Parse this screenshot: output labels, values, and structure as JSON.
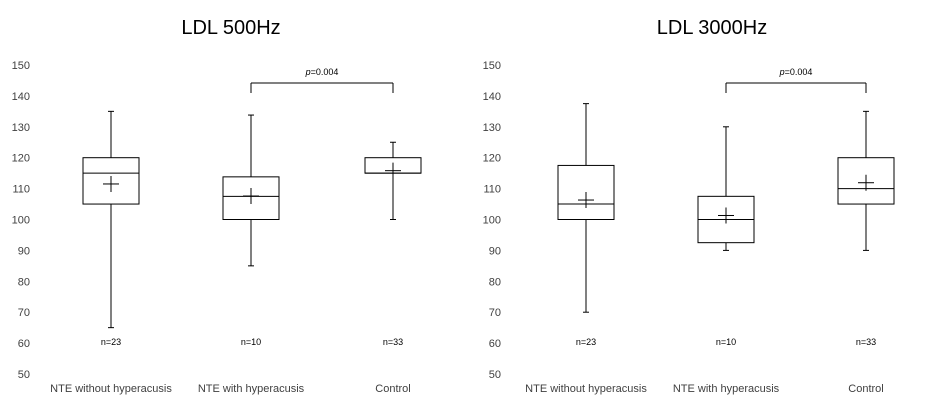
{
  "chart_data": [
    {
      "type": "boxplot",
      "title": "LDL 500Hz",
      "ylim": [
        50,
        150
      ],
      "yticks": [
        "50",
        "60",
        "70",
        "80",
        "90",
        "100",
        "110",
        "120",
        "130",
        "140",
        "150"
      ],
      "grid": false,
      "categories": [
        "NTE without hyperacusis",
        "NTE with hyperacusis",
        "Control"
      ],
      "boxes": [
        {
          "min": 65,
          "q1": 105,
          "median": 115,
          "q3": 120,
          "max": 135,
          "mean": 111.5
        },
        {
          "min": 85,
          "q1": 100,
          "median": 107.5,
          "q3": 113.8,
          "max": 133.8,
          "mean": 107.6
        },
        {
          "min": 100,
          "q1": 115,
          "median": 115,
          "q3": 120,
          "max": 125,
          "mean": 115.8
        }
      ],
      "n_labels": [
        "n=23",
        "n=10",
        "n=33"
      ],
      "significance": {
        "p_prefix": "p",
        "p_value": "=0.004",
        "from": 1,
        "to": 2
      }
    },
    {
      "type": "boxplot",
      "title": "LDL 3000Hz",
      "ylim": [
        50,
        150
      ],
      "yticks": [
        "50",
        "60",
        "70",
        "80",
        "90",
        "100",
        "110",
        "120",
        "130",
        "140",
        "150"
      ],
      "grid": false,
      "categories": [
        "NTE without hyperacusis",
        "NTE with hyperacusis",
        "Control"
      ],
      "boxes": [
        {
          "min": 70,
          "q1": 100,
          "median": 105,
          "q3": 117.5,
          "max": 137.5,
          "mean": 106.3
        },
        {
          "min": 90,
          "q1": 92.5,
          "median": 100,
          "q3": 107.5,
          "max": 130,
          "mean": 101.3
        },
        {
          "min": 90,
          "q1": 105,
          "median": 110,
          "q3": 120,
          "max": 135,
          "mean": 111.9
        }
      ],
      "n_labels": [
        "n=23",
        "n=10",
        "n=33"
      ],
      "significance": {
        "p_prefix": "p",
        "p_value": "=0.004",
        "from": 1,
        "to": 2
      }
    }
  ]
}
